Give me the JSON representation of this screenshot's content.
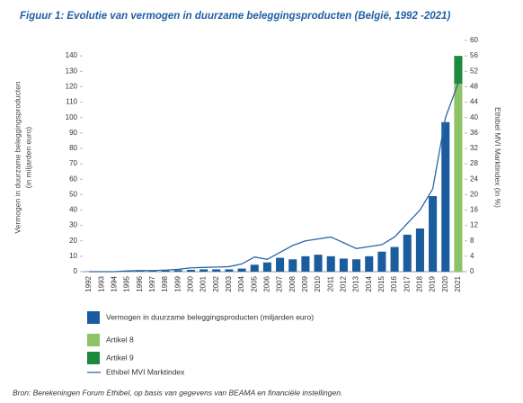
{
  "chart_data": {
    "type": "bar",
    "title": "Figuur 1: Evolutie van vermogen in duurzame beleggingsproducten (België, 1992 -2021)",
    "ylabel": [
      "Vermogen in duurzame beleggingsproducten",
      "(in miljarden euro)"
    ],
    "y2label": "Ethibel MVI Marktindex (in %)",
    "source": "Bron: Berekeningen Forum Ethibel, op basis van gegevens van BEAMA en financiële instellingen.",
    "categories": [
      "1992",
      "1993",
      "1994",
      "1995",
      "1996",
      "1997",
      "1998",
      "1999",
      "2000",
      "2001",
      "2002",
      "2003",
      "2004",
      "2005",
      "2006",
      "2007",
      "2008",
      "2009",
      "2010",
      "2011",
      "2012",
      "2013",
      "2014",
      "2015",
      "2016",
      "2017",
      "2018",
      "2019",
      "2020",
      "2021"
    ],
    "series": [
      {
        "name": "Vermogen in duurzame beleggingsproducten (miljarden euro)",
        "color": "#1b5c9e",
        "values": [
          0.1,
          0.1,
          0.2,
          0.3,
          0.5,
          0.6,
          0.8,
          1,
          1.2,
          1.5,
          1.5,
          1.5,
          2,
          4.5,
          6,
          9,
          8,
          10,
          11,
          10,
          8.5,
          8,
          10,
          13,
          16,
          24,
          28,
          49,
          97,
          null
        ]
      },
      {
        "name": "Artikel 8",
        "color": "#8dc265",
        "values": [
          null,
          null,
          null,
          null,
          null,
          null,
          null,
          null,
          null,
          null,
          null,
          null,
          null,
          null,
          null,
          null,
          null,
          null,
          null,
          null,
          null,
          null,
          null,
          null,
          null,
          null,
          null,
          null,
          null,
          122
        ]
      },
      {
        "name": "Artikel 9",
        "color": "#1b8a3c",
        "values": [
          null,
          null,
          null,
          null,
          null,
          null,
          null,
          null,
          null,
          null,
          null,
          null,
          null,
          null,
          null,
          null,
          null,
          null,
          null,
          null,
          null,
          null,
          null,
          null,
          null,
          null,
          null,
          null,
          null,
          18
        ]
      },
      {
        "name": "Ethibel MVI Marktindex",
        "color": "#2a67a8",
        "type": "line",
        "axis": "y2",
        "values": [
          0,
          0,
          0,
          0.2,
          0.3,
          0.3,
          0.4,
          0.6,
          1,
          1.1,
          1.2,
          1.3,
          2,
          3.8,
          3.2,
          5,
          6.8,
          8,
          8.5,
          9,
          7.5,
          6,
          6.5,
          7,
          9,
          12.5,
          16,
          21.5,
          40,
          49
        ]
      }
    ],
    "ylim": [
      0,
      150
    ],
    "yticks": [
      0,
      10,
      20,
      30,
      40,
      50,
      60,
      70,
      80,
      90,
      100,
      110,
      120,
      130,
      140
    ],
    "y2lim": [
      0,
      60
    ],
    "y2ticks": [
      0,
      4,
      8,
      12,
      16,
      20,
      24,
      28,
      32,
      36,
      40,
      44,
      48,
      52,
      56,
      60
    ]
  }
}
